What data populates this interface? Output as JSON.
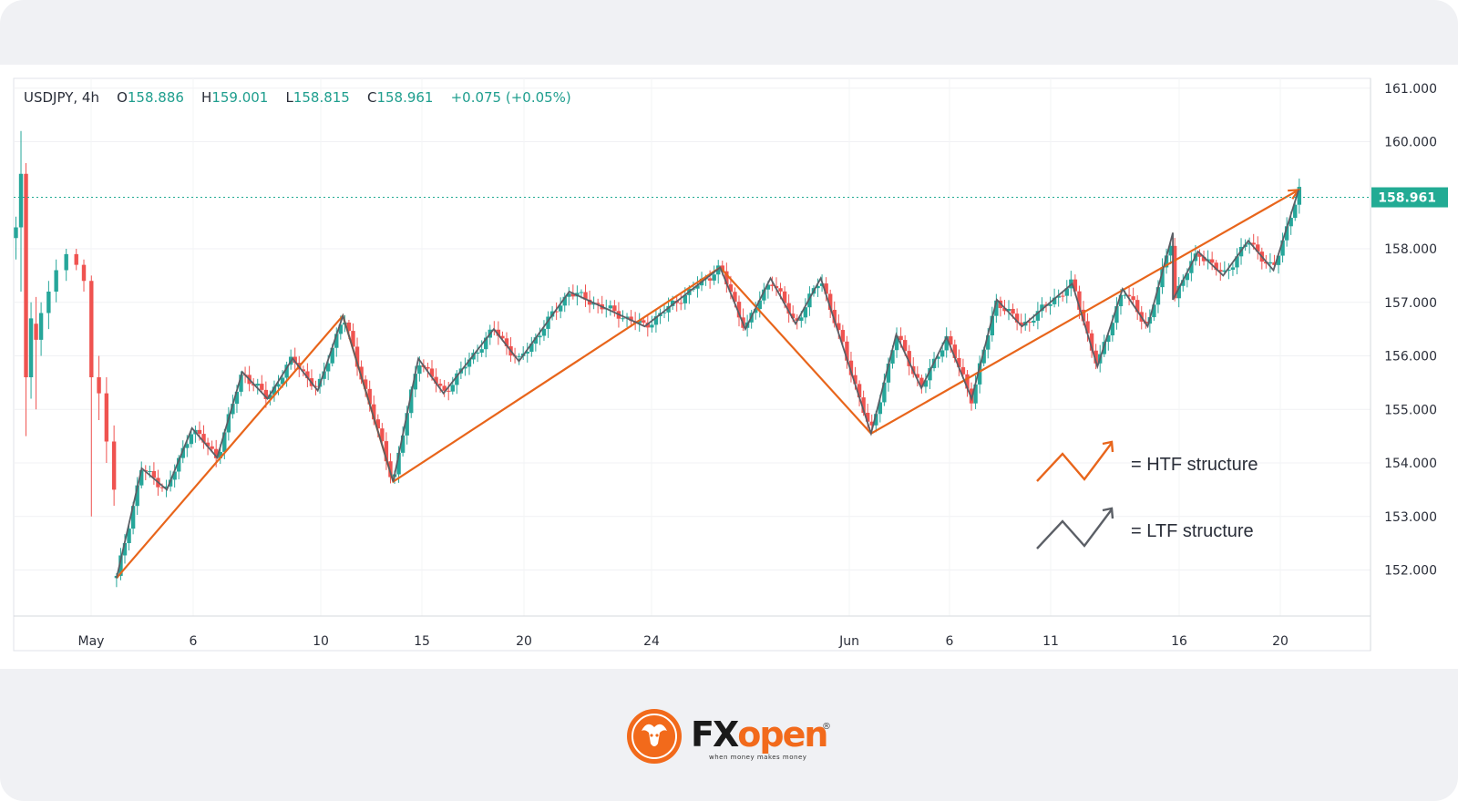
{
  "ohlc_bar": {
    "symbol": "USDJPY",
    "interval": "4h",
    "open_label": "O",
    "open": "158.886",
    "high_label": "H",
    "high": "159.001",
    "low_label": "L",
    "low": "158.815",
    "close_label": "C",
    "close": "158.961",
    "change": "+0.075 (+0.05%)"
  },
  "price_tag": "158.961",
  "legend": {
    "htf_label": "= HTF structure",
    "ltf_label": "= LTF structure"
  },
  "brand": {
    "name_fx": "FX",
    "name_open": "open",
    "registered": "®",
    "tagline": "when money makes money"
  },
  "colors": {
    "up": "#26a69a",
    "down": "#ef5350",
    "htf_line": "#e8651b",
    "ltf_line": "#5b5f66",
    "price_tag_bg": "#22ab94"
  },
  "chart_data": {
    "type": "candlestick",
    "symbol": "USDJPY",
    "timeframe": "4h",
    "y_ticks": [
      "161.000",
      "160.000",
      "158.000",
      "157.000",
      "156.000",
      "155.000",
      "154.000",
      "153.000",
      "152.000"
    ],
    "x_ticks": [
      "May",
      "6",
      "10",
      "15",
      "20",
      "24",
      "Jun",
      "6",
      "11",
      "16",
      "20"
    ],
    "last_price": 158.961,
    "htf_structure": [
      {
        "x": "May 5",
        "y": 151.85
      },
      {
        "x": "May 14",
        "y": 156.75
      },
      {
        "x": "May 16",
        "y": 153.65
      },
      {
        "x": "May 29",
        "y": 157.65
      },
      {
        "x": "Jun 4",
        "y": 154.55
      },
      {
        "x": "Jun 21",
        "y": 159.1
      }
    ],
    "ltf_structure": [
      {
        "x": "May 5",
        "y": 151.85
      },
      {
        "x": "May 6",
        "y": 153.9
      },
      {
        "x": "May 7",
        "y": 153.5
      },
      {
        "x": "May 8",
        "y": 154.65
      },
      {
        "x": "May 9",
        "y": 154.1
      },
      {
        "x": "May 10",
        "y": 155.7
      },
      {
        "x": "May 11",
        "y": 155.2
      },
      {
        "x": "May 12",
        "y": 155.95
      },
      {
        "x": "May 13",
        "y": 155.35
      },
      {
        "x": "May 14",
        "y": 156.75
      },
      {
        "x": "May 16",
        "y": 153.65
      },
      {
        "x": "May 17",
        "y": 155.95
      },
      {
        "x": "May 18",
        "y": 155.3
      },
      {
        "x": "May 20",
        "y": 156.5
      },
      {
        "x": "May 21",
        "y": 155.9
      },
      {
        "x": "May 23",
        "y": 157.2
      },
      {
        "x": "May 26",
        "y": 156.55
      },
      {
        "x": "May 29",
        "y": 157.65
      },
      {
        "x": "May 30",
        "y": 156.5
      },
      {
        "x": "May 31",
        "y": 157.45
      },
      {
        "x": "Jun 1",
        "y": 156.6
      },
      {
        "x": "Jun 2",
        "y": 157.45
      },
      {
        "x": "Jun 4",
        "y": 154.55
      },
      {
        "x": "Jun 5",
        "y": 156.4
      },
      {
        "x": "Jun 6",
        "y": 155.4
      },
      {
        "x": "Jun 7",
        "y": 156.35
      },
      {
        "x": "Jun 8",
        "y": 155.2
      },
      {
        "x": "Jun 9",
        "y": 157.05
      },
      {
        "x": "Jun 10",
        "y": 156.55
      },
      {
        "x": "Jun 12",
        "y": 157.35
      },
      {
        "x": "Jun 13",
        "y": 155.8
      },
      {
        "x": "Jun 14",
        "y": 157.25
      },
      {
        "x": "Jun 15",
        "y": 156.55
      },
      {
        "x": "Jun 16",
        "y": 158.3
      },
      {
        "x": "Jun 16",
        "y": 157.05
      },
      {
        "x": "Jun 17",
        "y": 157.95
      },
      {
        "x": "Jun 18",
        "y": 157.5
      },
      {
        "x": "Jun 19",
        "y": 158.15
      },
      {
        "x": "Jun 20",
        "y": 157.6
      },
      {
        "x": "Jun 21",
        "y": 159.1
      }
    ],
    "grid": true,
    "legend": [
      "= HTF structure",
      "= LTF structure"
    ],
    "legend_position": "bottom-right"
  }
}
